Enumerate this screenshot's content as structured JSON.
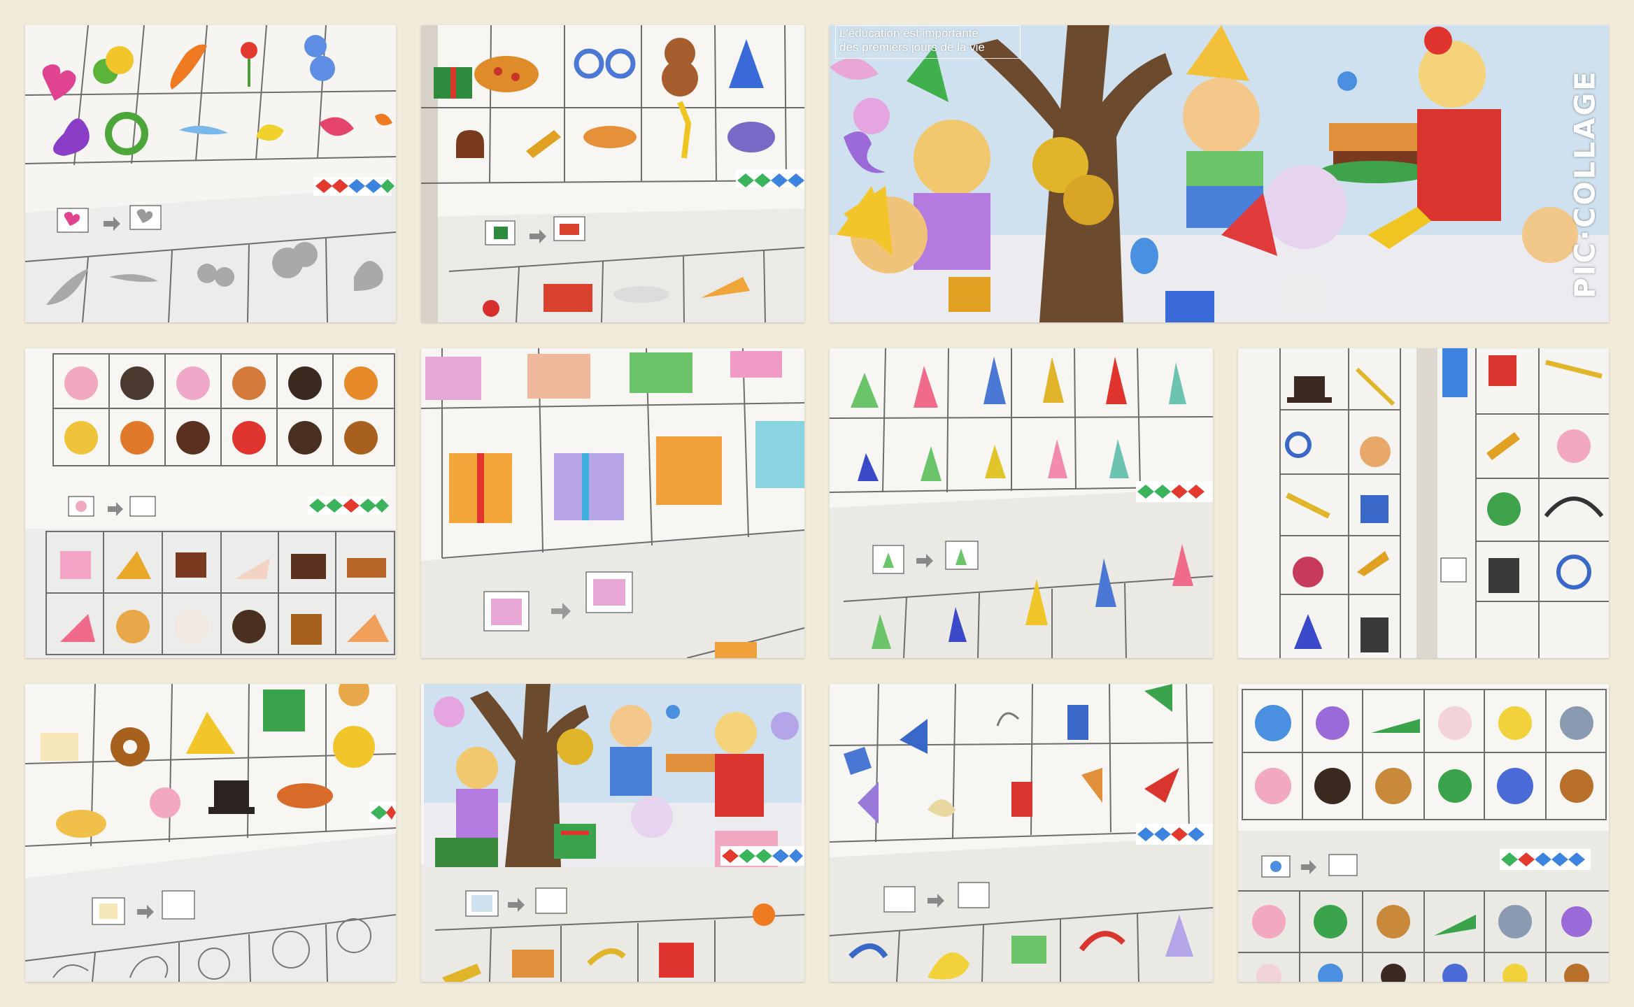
{
  "collage": {
    "watermark": "PIC·COLLAGE",
    "banner_line1": "L'éducation est importante",
    "banner_line2": "des premiers jours de la vie"
  },
  "tiles": [
    {
      "name": "photo-balloon-animals"
    },
    {
      "name": "photo-party-items"
    },
    {
      "name": "photo-party-scene"
    },
    {
      "name": "photo-cakes-page"
    },
    {
      "name": "photo-gift-boxes"
    },
    {
      "name": "photo-party-hats"
    },
    {
      "name": "photo-magic-items"
    },
    {
      "name": "photo-shape-matching"
    },
    {
      "name": "photo-party-scene-puzzle"
    },
    {
      "name": "photo-shape-fragments"
    },
    {
      "name": "photo-animal-stickers"
    }
  ],
  "colors": {
    "background": "#f1ebdc",
    "page": "#f4f2ee",
    "grid_line": "#6b6b6b",
    "sky": "#c8dcea",
    "tree": "#6b4a2e"
  }
}
